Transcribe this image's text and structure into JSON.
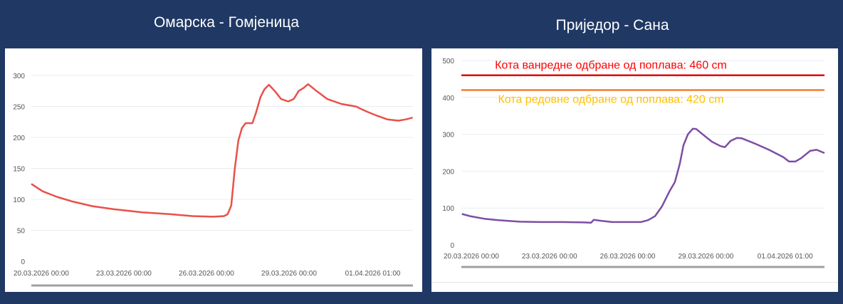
{
  "chart_data": [
    {
      "type": "line",
      "title": "Омарска - Гомјеница",
      "color": "#e8514a",
      "x_unit": "days since 20.03.2026 00:00",
      "xlim": [
        -0.36,
        13.5
      ],
      "ylim": [
        0,
        300
      ],
      "yticks": [
        0,
        50,
        100,
        150,
        200,
        250,
        300
      ],
      "xtick_labels": [
        {
          "day": 0,
          "label": "20.03.2026 00:00"
        },
        {
          "day": 3,
          "label": "23.03.2026 00:00"
        },
        {
          "day": 6,
          "label": "26.03.2026 00:00"
        },
        {
          "day": 9,
          "label": "29.03.2026 00:00"
        },
        {
          "day": 12.04,
          "label": "01.04.2026 01:00"
        }
      ],
      "x": [
        -0.36,
        0.05,
        0.57,
        1.09,
        1.86,
        2.64,
        3.67,
        4.7,
        5.48,
        6.25,
        6.64,
        6.77,
        6.9,
        7.03,
        7.16,
        7.29,
        7.42,
        7.67,
        7.8,
        7.96,
        8.11,
        8.27,
        8.48,
        8.71,
        8.97,
        9.17,
        9.35,
        9.53,
        9.69,
        10.0,
        10.39,
        10.9,
        11.42,
        11.81,
        12.2,
        12.58,
        12.97,
        13.23,
        13.49
      ],
      "y": [
        125,
        113,
        104,
        97,
        89,
        84,
        79,
        76,
        73,
        72,
        73,
        76,
        90,
        150,
        195,
        215,
        223,
        223,
        240,
        265,
        278,
        285,
        275,
        262,
        258,
        262,
        275,
        280,
        286,
        275,
        262,
        254,
        250,
        242,
        235,
        229,
        227,
        229,
        232
      ],
      "grid": true,
      "thresholds": []
    },
    {
      "type": "line",
      "title": "Приједор - Сана",
      "color": "#7d4ea3",
      "x_unit": "days since 20.03.2026 00:00",
      "xlim": [
        -0.38,
        13.55
      ],
      "ylim": [
        0,
        500
      ],
      "yticks": [
        0,
        100,
        200,
        300,
        400,
        500
      ],
      "xtick_labels": [
        {
          "day": 0,
          "label": "20.03.2026 00:00"
        },
        {
          "day": 3,
          "label": "23.03.2026 00:00"
        },
        {
          "day": 6,
          "label": "26.03.2026 00:00"
        },
        {
          "day": 9,
          "label": "29.03.2026 00:00"
        },
        {
          "day": 12.04,
          "label": "01.04.2026 01:00"
        }
      ],
      "x": [
        -0.36,
        -0.05,
        0.49,
        1.04,
        1.86,
        2.68,
        3.5,
        4.32,
        4.59,
        4.7,
        5.0,
        5.41,
        6.23,
        6.5,
        6.78,
        7.05,
        7.32,
        7.6,
        7.81,
        8.0,
        8.14,
        8.31,
        8.5,
        8.63,
        8.96,
        9.23,
        9.56,
        9.73,
        9.95,
        10.19,
        10.38,
        10.87,
        11.42,
        11.97,
        12.19,
        12.43,
        12.65,
        13.0,
        13.25,
        13.55
      ],
      "y": [
        84,
        78,
        71,
        67,
        63,
        62,
        62,
        61,
        60,
        68,
        65,
        62,
        62,
        62,
        67,
        78,
        105,
        145,
        170,
        220,
        270,
        300,
        315,
        314,
        295,
        280,
        268,
        265,
        282,
        290,
        289,
        275,
        258,
        238,
        226,
        226,
        235,
        255,
        258,
        249
      ],
      "grid": true,
      "thresholds": [
        {
          "value": 460,
          "color": "#e00000",
          "label": "Кота ванредне одбране од поплава: 460 cm",
          "label_color": "#ff0000"
        },
        {
          "value": 420,
          "color": "#f47c30",
          "label": "Кота редовне одбране од поплава: 420 cm",
          "label_color": "#ffc000"
        }
      ]
    }
  ]
}
